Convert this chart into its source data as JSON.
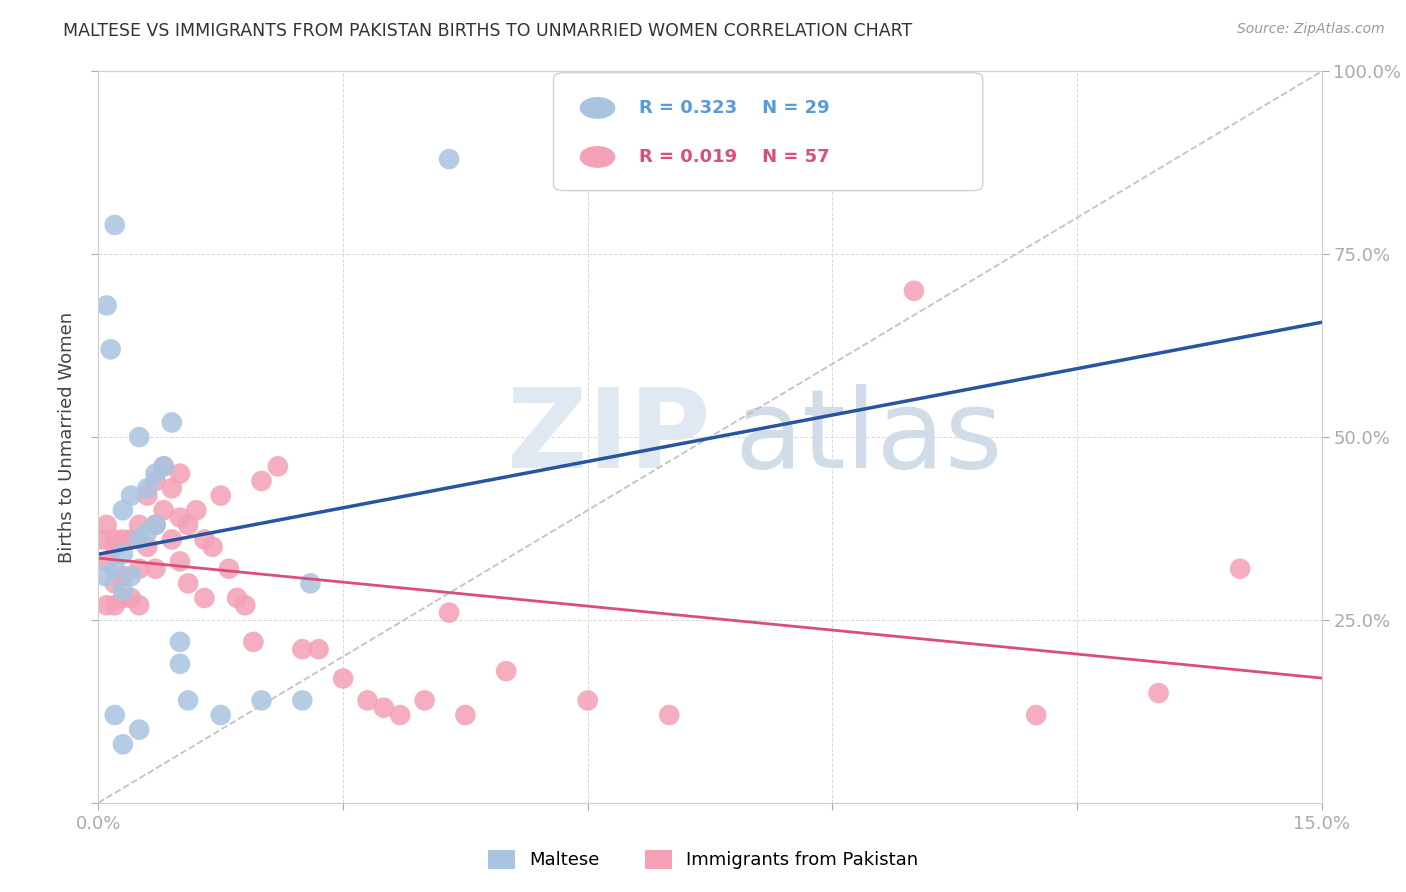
{
  "title": "MALTESE VS IMMIGRANTS FROM PAKISTAN BIRTHS TO UNMARRIED WOMEN CORRELATION CHART",
  "source": "Source: ZipAtlas.com",
  "ylabel": "Births to Unmarried Women",
  "xlim": [
    0.0,
    0.15
  ],
  "ylim": [
    0.0,
    1.0
  ],
  "maltese_color": "#a8c4e0",
  "pakistan_color": "#f4a0b5",
  "maltese_line_color": "#2955a0",
  "pakistan_line_color": "#d94f7a",
  "diagonal_color": "#b8b8b8",
  "background_color": "#ffffff",
  "maltese_x": [
    0.0008,
    0.001,
    0.0015,
    0.002,
    0.002,
    0.003,
    0.003,
    0.003,
    0.004,
    0.004,
    0.005,
    0.005,
    0.006,
    0.006,
    0.007,
    0.007,
    0.008,
    0.009,
    0.01,
    0.01,
    0.011,
    0.015,
    0.02,
    0.025,
    0.026,
    0.043,
    0.002,
    0.005,
    0.003
  ],
  "maltese_y": [
    0.31,
    0.68,
    0.62,
    0.32,
    0.79,
    0.34,
    0.29,
    0.4,
    0.42,
    0.31,
    0.5,
    0.36,
    0.37,
    0.43,
    0.38,
    0.45,
    0.46,
    0.52,
    0.22,
    0.19,
    0.14,
    0.12,
    0.14,
    0.14,
    0.3,
    0.88,
    0.12,
    0.1,
    0.08
  ],
  "pakistan_x": [
    0.0005,
    0.001,
    0.001,
    0.001,
    0.002,
    0.002,
    0.002,
    0.003,
    0.003,
    0.003,
    0.004,
    0.004,
    0.005,
    0.005,
    0.005,
    0.006,
    0.006,
    0.007,
    0.007,
    0.007,
    0.008,
    0.008,
    0.009,
    0.009,
    0.01,
    0.01,
    0.01,
    0.011,
    0.011,
    0.012,
    0.013,
    0.013,
    0.014,
    0.015,
    0.016,
    0.017,
    0.018,
    0.019,
    0.02,
    0.022,
    0.025,
    0.027,
    0.03,
    0.033,
    0.035,
    0.037,
    0.04,
    0.043,
    0.045,
    0.05,
    0.06,
    0.07,
    0.1,
    0.115,
    0.13,
    0.14,
    0.002
  ],
  "pakistan_y": [
    0.36,
    0.38,
    0.33,
    0.27,
    0.35,
    0.3,
    0.27,
    0.36,
    0.31,
    0.28,
    0.36,
    0.28,
    0.38,
    0.32,
    0.27,
    0.42,
    0.35,
    0.44,
    0.38,
    0.32,
    0.46,
    0.4,
    0.43,
    0.36,
    0.45,
    0.39,
    0.33,
    0.38,
    0.3,
    0.4,
    0.36,
    0.28,
    0.35,
    0.42,
    0.32,
    0.28,
    0.27,
    0.22,
    0.44,
    0.46,
    0.21,
    0.21,
    0.17,
    0.14,
    0.13,
    0.12,
    0.14,
    0.26,
    0.12,
    0.18,
    0.14,
    0.12,
    0.7,
    0.12,
    0.15,
    0.32,
    0.36
  ],
  "legend_r1": "R = 0.323",
  "legend_n1": "N = 29",
  "legend_r2": "R = 0.019",
  "legend_n2": "N = 57"
}
